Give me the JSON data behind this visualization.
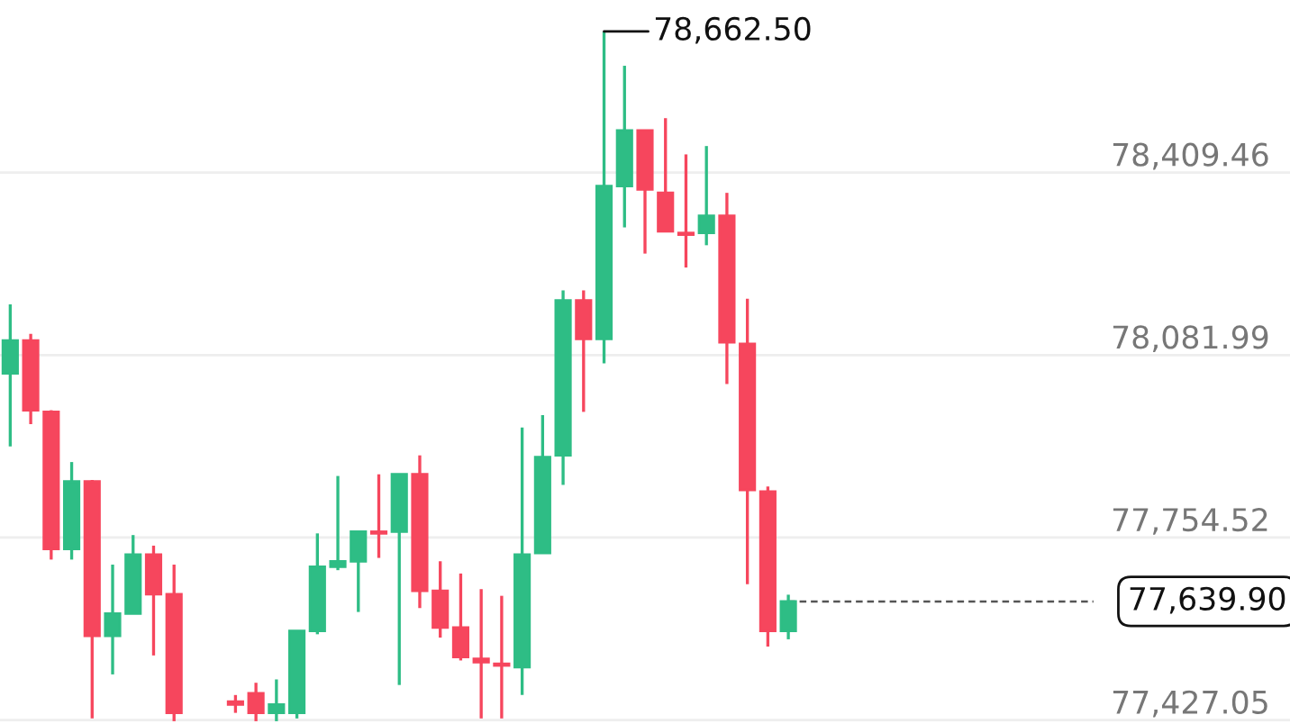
{
  "chart_data": {
    "type": "candlestick",
    "categories": [
      null,
      null,
      null,
      null,
      null,
      null,
      null,
      null,
      null,
      null,
      null,
      null,
      null,
      null,
      null,
      null,
      null,
      null,
      null,
      null,
      null,
      null,
      null,
      null,
      null,
      null,
      null,
      null,
      null,
      null,
      null,
      null,
      null,
      null,
      null,
      null,
      null,
      null,
      null,
      null,
      null,
      null,
      null,
      null,
      null,
      null,
      null,
      null,
      null,
      null,
      null,
      null,
      null,
      null,
      null,
      null,
      null,
      null,
      null,
      null,
      null,
      null,
      null
    ],
    "ohlc": [
      [
        78049,
        78173,
        77918,
        78108
      ],
      [
        78108,
        78120,
        77958,
        77983
      ],
      [
        77980,
        77983,
        77715,
        77734
      ],
      [
        77734,
        77890,
        77715,
        77855
      ],
      [
        77855,
        77858,
        77430,
        77578
      ],
      [
        77578,
        77706,
        77509,
        77618
      ],
      [
        77618,
        77759,
        77618,
        77724
      ],
      [
        77724,
        77740,
        77543,
        77653
      ],
      [
        77653,
        77706,
        77425,
        77440
      ],
      null,
      null,
      [
        77460,
        77472,
        77440,
        77455
      ],
      [
        77475,
        77494,
        77425,
        77440
      ],
      [
        77440,
        77500,
        77425,
        77455
      ],
      [
        77440,
        77587,
        77430,
        77587
      ],
      [
        77587,
        77762,
        77581,
        77702
      ],
      [
        77702,
        77865,
        77696,
        77712
      ],
      [
        77712,
        77765,
        77621,
        77765
      ],
      [
        77765,
        77868,
        77718,
        77762
      ],
      [
        77765,
        77868,
        77490,
        77868
      ],
      [
        77868,
        77902,
        77628,
        77659
      ],
      [
        77659,
        77712,
        77575,
        77593
      ],
      [
        77593,
        77690,
        77534,
        77540
      ],
      [
        77537,
        77662,
        77430,
        77531
      ],
      [
        77528,
        77650,
        77430,
        77525
      ],
      [
        77522,
        77952,
        77472,
        77724
      ],
      [
        77727,
        77974,
        77727,
        77899
      ],
      [
        77902,
        78198,
        77849,
        78180
      ],
      [
        78180,
        78198,
        77980,
        78111
      ],
      [
        78111,
        78662.5,
        78067,
        78385
      ],
      [
        78385,
        78601,
        78311,
        78485
      ],
      [
        78485,
        78485,
        78264,
        78379
      ],
      [
        78373,
        78507,
        78304,
        78304
      ],
      [
        78301,
        78442,
        78239,
        78298
      ],
      [
        78301,
        78457,
        78279,
        78332
      ],
      [
        78332,
        78373,
        78030,
        78105
      ],
      [
        78102,
        78183,
        77671,
        77840
      ],
      [
        77837,
        77846,
        77559,
        77587
      ],
      [
        77587,
        77652,
        77572,
        77639.9
      ],
      null,
      null,
      null,
      null,
      null,
      null,
      null,
      null,
      null,
      null,
      null,
      null,
      null,
      null,
      null,
      null,
      null,
      null,
      null,
      null,
      null,
      null,
      null,
      null
    ],
    "colors": [
      "#2ebd85",
      "#f6465d",
      "#f6465d",
      "#2ebd85",
      "#f6465d",
      "#2ebd85",
      "#2ebd85",
      "#f6465d",
      "#f6465d",
      null,
      null,
      "#f6465d",
      "#f6465d",
      "#2ebd85",
      "#2ebd85",
      "#2ebd85",
      "#2ebd85",
      "#2ebd85",
      "#f6465d",
      "#2ebd85",
      "#f6465d",
      "#f6465d",
      "#f6465d",
      "#f6465d",
      "#f6465d",
      "#2ebd85",
      "#2ebd85",
      "#2ebd85",
      "#f6465d",
      "#2ebd85",
      "#2ebd85",
      "#f6465d",
      "#f6465d",
      "#f6465d",
      "#2ebd85",
      "#f6465d",
      "#f6465d",
      "#f6465d",
      "#2ebd85",
      null,
      null,
      null,
      null,
      null,
      null,
      null,
      null,
      null,
      null,
      null,
      null,
      null,
      null,
      null,
      null,
      null,
      null,
      null,
      null,
      null,
      null,
      null,
      null
    ],
    "ylim": [
      77420,
      78719
    ],
    "yticks": [
      {
        "value": 78409.46,
        "label": "78,409.46"
      },
      {
        "value": 78081.99,
        "label": "78,081.99"
      },
      {
        "value": 77754.52,
        "label": "77,754.52"
      },
      {
        "value": 77427.05,
        "label": "77,427.05"
      }
    ],
    "grid": "y",
    "annotations": [
      "78,662.50"
    ],
    "ref_lines": [
      {
        "axis": "y",
        "value": 77639.9,
        "label": "77,639.90",
        "line_style": "dashed",
        "color": "#555555"
      }
    ]
  }
}
